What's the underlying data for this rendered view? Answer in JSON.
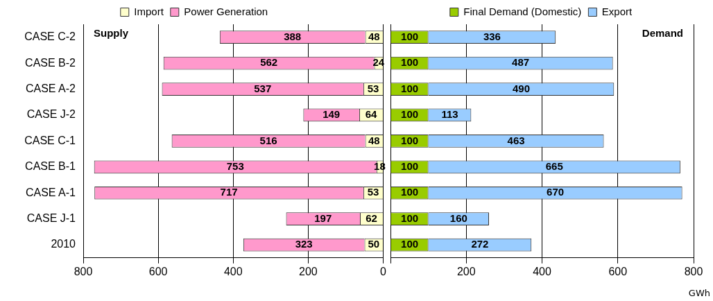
{
  "chart_data": [
    {
      "type": "bar",
      "orientation": "horizontal",
      "stacked": true,
      "categories": [
        "CASE C-2",
        "CASE B-2",
        "CASE A-2",
        "CASE J-2",
        "CASE C-1",
        "CASE B-1",
        "CASE A-1",
        "CASE J-1",
        "2010"
      ],
      "series": [
        {
          "name": "Import",
          "color": "#ffffcc",
          "values": [
            48,
            24,
            53,
            64,
            48,
            18,
            53,
            62,
            50
          ]
        },
        {
          "name": "Power Generation",
          "color": "#ff99cc",
          "values": [
            388,
            562,
            537,
            149,
            516,
            753,
            717,
            197,
            323
          ]
        }
      ],
      "xlim": [
        800,
        0
      ],
      "xticks": [
        800,
        600,
        400,
        200,
        0
      ],
      "grid": "x",
      "legend": "top",
      "data_labels": true,
      "annotations": [
        "Supply"
      ]
    },
    {
      "type": "bar",
      "orientation": "horizontal",
      "stacked": true,
      "categories": [
        null,
        null,
        null,
        null,
        null,
        null,
        null,
        null,
        null
      ],
      "series": [
        {
          "name": "Final Demand (Domestic)",
          "color": "#99cc00",
          "values": [
            100,
            100,
            100,
            100,
            100,
            100,
            100,
            100,
            100
          ]
        },
        {
          "name": "Export",
          "color": "#99ccff",
          "values": [
            336,
            487,
            490,
            113,
            463,
            665,
            670,
            160,
            272
          ]
        }
      ],
      "xlim": [
        0,
        800
      ],
      "xticks": [
        {
          "value": 0,
          "label": null
        },
        200,
        400,
        600,
        800
      ],
      "grid": "x",
      "legend": "top",
      "data_labels": true,
      "tick_labels": "x",
      "annotations": [
        "Demand",
        "GWh"
      ]
    }
  ]
}
